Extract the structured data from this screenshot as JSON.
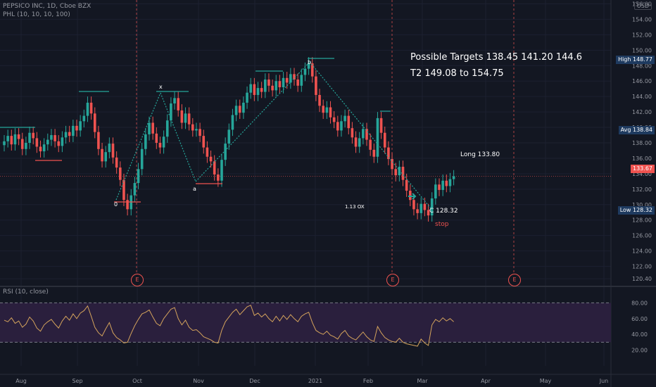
{
  "header": {
    "symbol_line": "PEPSICO INC, 1D, Cboe BZX",
    "indicator_line": "PHL (10, 10, 10, 100)",
    "currency": "USD"
  },
  "rsi": {
    "label": "RSI (10, close)",
    "upper": 80,
    "lower": 30
  },
  "annotations": {
    "targets": "Possible Targets  138.45  141.20  144.6",
    "t2": "T2  149.08 to 154.75",
    "long": "Long 133.80",
    "c_point": "C  128.32",
    "stop": "stop",
    "ox": "1.13   OX",
    "wave_x": "x",
    "wave_b": "b",
    "wave_a": "a",
    "wave_0": "0",
    "earnings": "E"
  },
  "price_tags": {
    "high": {
      "label": "High",
      "value": "148.77"
    },
    "avg": {
      "label": "Avg",
      "value": "138.84"
    },
    "last": {
      "value": "133.67"
    },
    "low": {
      "label": "Low",
      "value": "128.32"
    }
  },
  "colors": {
    "up": "#26a69a",
    "down": "#ef5350",
    "rsi_line": "#d4a35c",
    "rsi_band": "#2a1f3d",
    "bg": "#131722"
  },
  "chart_data": {
    "type": "candlestick",
    "y_axis_ticks": [
      120.4,
      122.0,
      124.0,
      126.0,
      128.0,
      130.0,
      132.0,
      134.0,
      136.0,
      138.0,
      140.0,
      142.0,
      144.0,
      146.0,
      148.0,
      150.0,
      152.0,
      154.0,
      156.0
    ],
    "y_range": [
      119.5,
      156.5
    ],
    "x_axis_labels": [
      "Aug",
      "Sep",
      "Oct",
      "Nov",
      "Dec",
      "2021",
      "Feb",
      "Mar",
      "Apr",
      "May",
      "Jun"
    ],
    "rsi_ticks": [
      20.0,
      40.0,
      60.0,
      80.0
    ],
    "closes": [
      138.2,
      138.9,
      137.8,
      139.1,
      138.5,
      137.2,
      138.0,
      139.3,
      138.6,
      137.5,
      136.9,
      137.8,
      138.4,
      139.0,
      138.2,
      137.6,
      138.7,
      139.4,
      138.9,
      140.2,
      139.6,
      140.8,
      141.5,
      143.2,
      141.8,
      139.4,
      137.2,
      135.6,
      136.8,
      137.9,
      136.1,
      134.8,
      133.2,
      130.6,
      129.4,
      131.2,
      132.8,
      134.6,
      137.2,
      139.1,
      140.6,
      139.2,
      138.0,
      137.4,
      138.8,
      140.9,
      143.1,
      143.8,
      142.2,
      140.6,
      141.8,
      140.4,
      139.6,
      139.8,
      138.9,
      137.4,
      136.2,
      135.6,
      133.9,
      133.1,
      135.8,
      137.9,
      139.7,
      141.6,
      142.8,
      141.9,
      143.2,
      144.5,
      145.6,
      144.2,
      145.1,
      144.6,
      146.2,
      145.4,
      144.8,
      146.0,
      145.2,
      146.4,
      145.8,
      146.9,
      146.2,
      145.4,
      146.8,
      147.6,
      148.3,
      146.6,
      144.2,
      142.8,
      141.9,
      142.6,
      141.3,
      140.7,
      139.6,
      140.8,
      141.5,
      139.9,
      138.7,
      137.5,
      138.6,
      139.8,
      138.4,
      137.1,
      136.2,
      141.2,
      139.3,
      137.4,
      135.9,
      134.6,
      133.8,
      134.9,
      133.2,
      131.8,
      130.6,
      129.4,
      128.9,
      130.1,
      129.3,
      128.6,
      130.8,
      132.6,
      131.9,
      133.1,
      132.4,
      133.3,
      133.67
    ],
    "rsi_values": [
      58,
      56,
      61,
      54,
      57,
      49,
      53,
      62,
      57,
      48,
      44,
      52,
      56,
      59,
      53,
      48,
      57,
      63,
      58,
      66,
      60,
      67,
      70,
      76,
      63,
      49,
      42,
      38,
      47,
      55,
      42,
      36,
      33,
      29,
      30,
      41,
      51,
      59,
      66,
      68,
      71,
      62,
      54,
      51,
      60,
      66,
      72,
      74,
      60,
      52,
      58,
      49,
      45,
      46,
      42,
      37,
      35,
      33,
      30,
      29,
      45,
      56,
      62,
      68,
      72,
      65,
      70,
      75,
      77,
      64,
      67,
      62,
      66,
      60,
      56,
      63,
      57,
      64,
      59,
      65,
      60,
      56,
      63,
      66,
      68,
      55,
      45,
      42,
      40,
      44,
      39,
      37,
      34,
      41,
      45,
      38,
      35,
      33,
      38,
      43,
      37,
      33,
      31,
      50,
      42,
      36,
      33,
      31,
      30,
      35,
      30,
      28,
      27,
      26,
      25,
      34,
      29,
      26,
      52,
      59,
      56,
      61,
      57,
      60,
      56
    ]
  }
}
